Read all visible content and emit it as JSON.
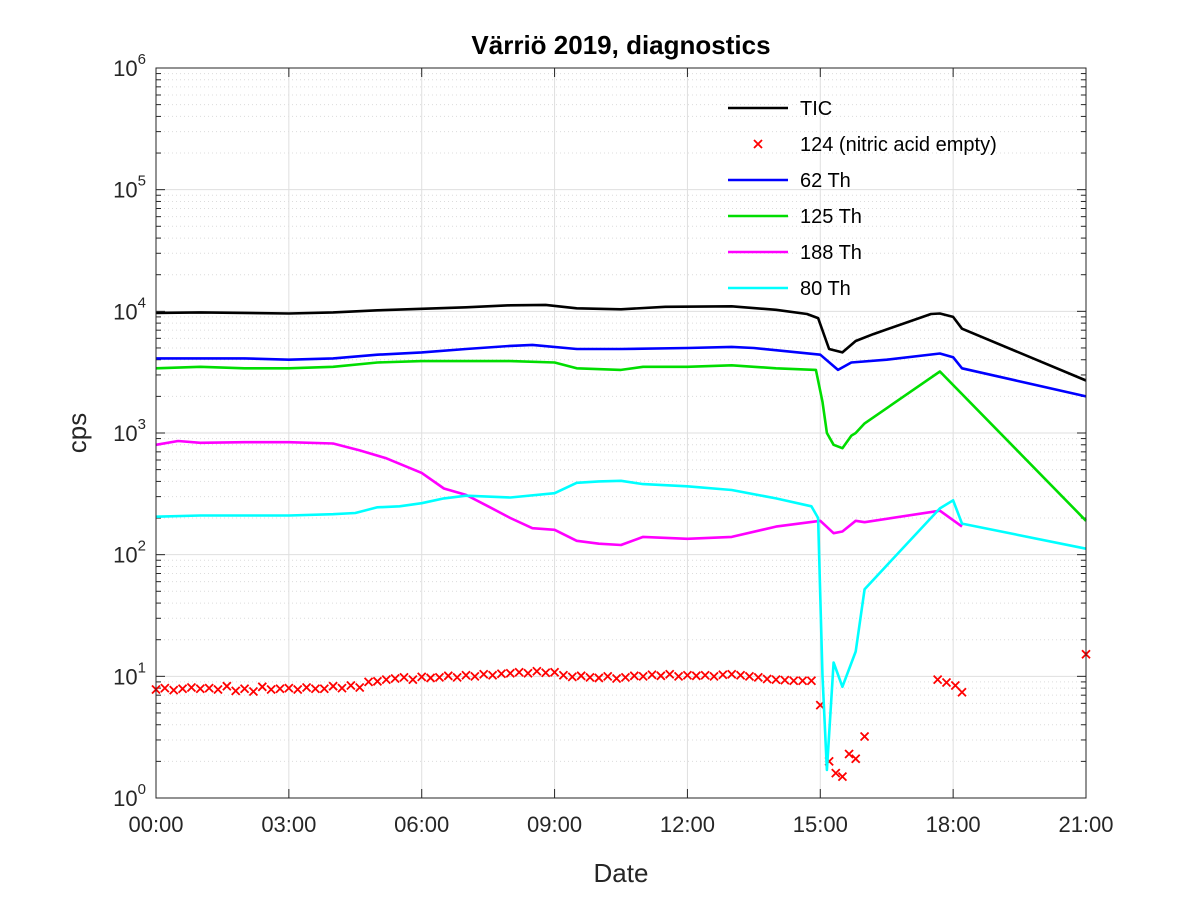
{
  "chart_data": {
    "type": "line",
    "title": "Värriö 2019, diagnostics",
    "xlabel": "Date",
    "ylabel": "cps",
    "xscale": "linear",
    "yscale": "log",
    "xlim_hours": [
      0,
      21
    ],
    "ylim": [
      1,
      1000000
    ],
    "grid": true,
    "minor_grid_y": true,
    "legend_position": "top-right",
    "x_ticks": [
      {
        "value": 0,
        "label": "00:00"
      },
      {
        "value": 3,
        "label": "03:00"
      },
      {
        "value": 6,
        "label": "06:00"
      },
      {
        "value": 9,
        "label": "09:00"
      },
      {
        "value": 12,
        "label": "12:00"
      },
      {
        "value": 15,
        "label": "15:00"
      },
      {
        "value": 18,
        "label": "18:00"
      },
      {
        "value": 21,
        "label": "21:00"
      }
    ],
    "y_ticks": [
      {
        "value": 1,
        "base": "10",
        "exp": "0"
      },
      {
        "value": 10,
        "base": "10",
        "exp": "1"
      },
      {
        "value": 100,
        "base": "10",
        "exp": "2"
      },
      {
        "value": 1000,
        "base": "10",
        "exp": "3"
      },
      {
        "value": 10000,
        "base": "10",
        "exp": "4"
      },
      {
        "value": 100000,
        "base": "10",
        "exp": "5"
      },
      {
        "value": 1000000,
        "base": "10",
        "exp": "6"
      }
    ],
    "series": [
      {
        "name": "TIC",
        "style": "line",
        "color": "#000000",
        "x": [
          0,
          1,
          2,
          3,
          4,
          5,
          6,
          7,
          8,
          8.8,
          9.5,
          10.5,
          11.5,
          13,
          14,
          14.7,
          14.95,
          15.2,
          15.5,
          15.8,
          16.2,
          17.5,
          17.7,
          18,
          18.2,
          21
        ],
        "y": [
          9700,
          9800,
          9700,
          9600,
          9800,
          10200,
          10500,
          10800,
          11200,
          11300,
          10600,
          10400,
          10900,
          11000,
          10300,
          9500,
          8800,
          4900,
          4600,
          5700,
          6500,
          9500,
          9600,
          9000,
          7200,
          2700
        ]
      },
      {
        "name": "124 (nitric acid empty)",
        "style": "marker",
        "color": "#ff0000",
        "x": [
          0,
          0.2,
          0.4,
          0.6,
          0.8,
          1,
          1.2,
          1.4,
          1.6,
          1.8,
          2,
          2.2,
          2.4,
          2.6,
          2.8,
          3,
          3.2,
          3.4,
          3.6,
          3.8,
          4,
          4.2,
          4.4,
          4.6,
          4.8,
          5,
          5.2,
          5.4,
          5.6,
          5.8,
          6,
          6.2,
          6.4,
          6.6,
          6.8,
          7,
          7.2,
          7.4,
          7.6,
          7.8,
          8,
          8.2,
          8.4,
          8.6,
          8.8,
          9,
          9.2,
          9.4,
          9.6,
          9.8,
          10,
          10.2,
          10.4,
          10.6,
          10.8,
          11,
          11.2,
          11.4,
          11.6,
          11.8,
          12,
          12.2,
          12.4,
          12.6,
          12.8,
          13,
          13.2,
          13.4,
          13.6,
          13.8,
          14,
          14.2,
          14.4,
          14.6,
          14.8,
          15,
          15.2,
          15.35,
          15.5,
          15.65,
          15.8,
          16,
          17.65,
          17.85,
          18.05,
          18.2,
          21
        ],
        "y": [
          7.8,
          8.0,
          7.7,
          7.9,
          8.1,
          7.9,
          8.0,
          7.8,
          8.3,
          7.6,
          7.9,
          7.5,
          8.2,
          7.8,
          7.9,
          8.0,
          7.8,
          8.1,
          7.9,
          7.9,
          8.3,
          8.0,
          8.4,
          8.1,
          9.0,
          9.1,
          9.4,
          9.6,
          9.8,
          9.4,
          9.9,
          9.7,
          9.8,
          10.1,
          9.8,
          10.2,
          10.0,
          10.4,
          10.2,
          10.5,
          10.6,
          10.8,
          10.6,
          11.0,
          10.7,
          10.8,
          10.2,
          9.9,
          10.1,
          9.8,
          9.7,
          10.0,
          9.6,
          9.8,
          10.1,
          10.0,
          10.3,
          10.1,
          10.4,
          10.0,
          10.2,
          10.1,
          10.2,
          10.0,
          10.3,
          10.4,
          10.2,
          10.0,
          9.8,
          9.5,
          9.4,
          9.3,
          9.2,
          9.2,
          9.2,
          5.8,
          2.0,
          1.6,
          1.5,
          2.3,
          2.1,
          3.2,
          9.4,
          8.9,
          8.4,
          7.4,
          15.2
        ]
      },
      {
        "name": "62 Th",
        "style": "line",
        "color": "#0000ff",
        "x": [
          0,
          1,
          2,
          3,
          4,
          5,
          6,
          7,
          8,
          8.5,
          9.5,
          10.5,
          12,
          13,
          13.5,
          14.5,
          15,
          15.4,
          15.7,
          16.5,
          17.7,
          18,
          18.2,
          21
        ],
        "y": [
          4100,
          4100,
          4100,
          4000,
          4100,
          4400,
          4600,
          4900,
          5200,
          5300,
          4900,
          4900,
          5000,
          5100,
          5000,
          4600,
          4400,
          3300,
          3800,
          4000,
          4500,
          4200,
          3400,
          2000
        ]
      },
      {
        "name": "125 Th",
        "style": "line",
        "color": "#00dd00",
        "x": [
          0,
          1,
          2,
          3,
          4,
          5,
          6,
          7,
          8,
          9,
          9.5,
          10.5,
          11,
          12,
          13,
          14,
          14.9,
          15.05,
          15.15,
          15.3,
          15.5,
          15.7,
          15.8,
          16,
          17.7,
          21
        ],
        "y": [
          3400,
          3500,
          3400,
          3400,
          3500,
          3800,
          3900,
          3900,
          3900,
          3800,
          3400,
          3300,
          3500,
          3500,
          3600,
          3400,
          3300,
          1800,
          1000,
          800,
          750,
          950,
          1000,
          1200,
          3200,
          190
        ]
      },
      {
        "name": "188 Th",
        "style": "line",
        "color": "#ff00ff",
        "x": [
          0,
          0.5,
          1,
          2,
          3,
          4,
          4.6,
          5.2,
          6,
          6.5,
          7,
          7.5,
          8,
          8.5,
          9,
          9.5,
          10,
          10.5,
          11,
          12,
          13,
          14,
          15,
          15.3,
          15.5,
          15.8,
          16,
          17.7,
          18.2
        ],
        "y": [
          800,
          860,
          830,
          840,
          840,
          820,
          720,
          620,
          470,
          350,
          310,
          250,
          200,
          165,
          160,
          130,
          123,
          120,
          140,
          135,
          140,
          170,
          190,
          150,
          155,
          190,
          185,
          230,
          170
        ]
      },
      {
        "name": "80 Th",
        "style": "line",
        "color": "#00ffff",
        "x": [
          0,
          1,
          2,
          3,
          4,
          4.5,
          5,
          5.5,
          6,
          6.5,
          7,
          8,
          9,
          9.5,
          10,
          10.5,
          11,
          12,
          13,
          14,
          14.8,
          14.95,
          15.05,
          15.15,
          15.3,
          15.5,
          15.8,
          16,
          17.7,
          18,
          18.2,
          21
        ],
        "y": [
          205,
          210,
          210,
          210,
          215,
          220,
          245,
          250,
          265,
          290,
          305,
          295,
          320,
          390,
          400,
          405,
          380,
          365,
          340,
          290,
          250,
          200,
          10,
          1.7,
          13,
          8.2,
          16,
          52,
          240,
          280,
          180,
          112
        ]
      }
    ]
  }
}
